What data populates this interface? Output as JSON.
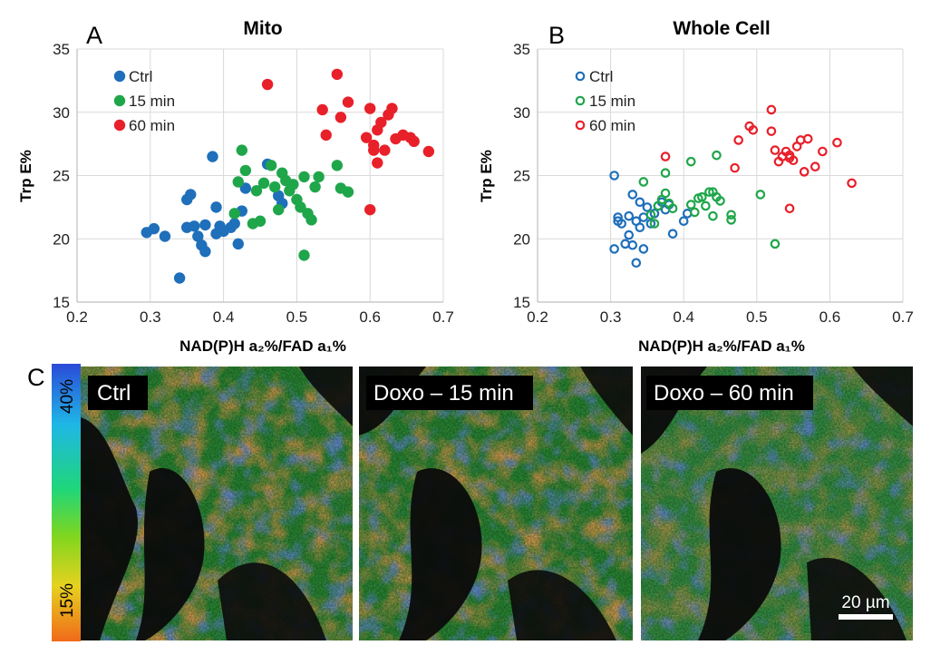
{
  "chart_data": [
    {
      "panel_label": "A",
      "type": "scatter",
      "title": "Mito",
      "xlabel": "NAD(P)H a₂%/FAD a₁%",
      "ylabel": "Trp E%",
      "xlim": [
        0.2,
        0.7
      ],
      "ylim": [
        15,
        35
      ],
      "xticks": [
        "0.2",
        "0.3",
        "0.4",
        "0.5",
        "0.6",
        "0.7"
      ],
      "yticks": [
        "15",
        "20",
        "25",
        "30",
        "35"
      ],
      "grid": true,
      "marker": "filled",
      "legend_position": "top-left",
      "series": [
        {
          "name": "Ctrl",
          "color": "#1f6fba",
          "points": [
            [
              0.295,
              20.5
            ],
            [
              0.305,
              20.8
            ],
            [
              0.32,
              20.2
            ],
            [
              0.34,
              16.9
            ],
            [
              0.35,
              20.9
            ],
            [
              0.35,
              23.1
            ],
            [
              0.355,
              23.5
            ],
            [
              0.36,
              21.0
            ],
            [
              0.365,
              20.2
            ],
            [
              0.37,
              19.5
            ],
            [
              0.375,
              19.0
            ],
            [
              0.375,
              21.1
            ],
            [
              0.385,
              26.5
            ],
            [
              0.39,
              20.4
            ],
            [
              0.39,
              22.5
            ],
            [
              0.395,
              21.0
            ],
            [
              0.4,
              20.6
            ],
            [
              0.41,
              20.9
            ],
            [
              0.415,
              21.2
            ],
            [
              0.42,
              19.6
            ],
            [
              0.425,
              22.2
            ],
            [
              0.43,
              24.0
            ],
            [
              0.46,
              25.9
            ],
            [
              0.475,
              23.4
            ],
            [
              0.48,
              22.8
            ]
          ]
        },
        {
          "name": "15 min",
          "color": "#1fa64a",
          "points": [
            [
              0.415,
              22.0
            ],
            [
              0.42,
              24.5
            ],
            [
              0.425,
              27.0
            ],
            [
              0.43,
              25.4
            ],
            [
              0.44,
              21.2
            ],
            [
              0.445,
              23.8
            ],
            [
              0.45,
              21.4
            ],
            [
              0.455,
              24.4
            ],
            [
              0.465,
              25.8
            ],
            [
              0.47,
              24.1
            ],
            [
              0.475,
              22.3
            ],
            [
              0.48,
              25.2
            ],
            [
              0.485,
              24.6
            ],
            [
              0.49,
              23.8
            ],
            [
              0.495,
              24.3
            ],
            [
              0.5,
              23.1
            ],
            [
              0.505,
              22.5
            ],
            [
              0.51,
              24.9
            ],
            [
              0.51,
              18.7
            ],
            [
              0.515,
              22.0
            ],
            [
              0.52,
              21.5
            ],
            [
              0.525,
              24.1
            ],
            [
              0.53,
              24.9
            ],
            [
              0.555,
              25.8
            ],
            [
              0.56,
              24.0
            ],
            [
              0.57,
              23.7
            ]
          ]
        },
        {
          "name": "60 min",
          "color": "#e8202a",
          "points": [
            [
              0.46,
              32.2
            ],
            [
              0.535,
              30.2
            ],
            [
              0.54,
              28.2
            ],
            [
              0.555,
              33.0
            ],
            [
              0.56,
              29.6
            ],
            [
              0.57,
              30.8
            ],
            [
              0.595,
              28.0
            ],
            [
              0.6,
              22.3
            ],
            [
              0.6,
              30.3
            ],
            [
              0.605,
              27.0
            ],
            [
              0.605,
              27.4
            ],
            [
              0.61,
              26.0
            ],
            [
              0.61,
              28.6
            ],
            [
              0.615,
              29.2
            ],
            [
              0.62,
              27.0
            ],
            [
              0.625,
              29.8
            ],
            [
              0.63,
              30.3
            ],
            [
              0.635,
              27.9
            ],
            [
              0.645,
              28.2
            ],
            [
              0.655,
              28.0
            ],
            [
              0.66,
              27.7
            ],
            [
              0.68,
              26.9
            ]
          ]
        }
      ]
    },
    {
      "panel_label": "B",
      "type": "scatter",
      "title": "Whole Cell",
      "xlabel": "NAD(P)H a₂%/FAD a₁%",
      "ylabel": "Trp E%",
      "xlim": [
        0.2,
        0.7
      ],
      "ylim": [
        15,
        35
      ],
      "xticks": [
        "0.2",
        "0.3",
        "0.4",
        "0.5",
        "0.6",
        "0.7"
      ],
      "yticks": [
        "15",
        "20",
        "25",
        "30",
        "35"
      ],
      "grid": true,
      "marker": "open",
      "legend_position": "top-left",
      "series": [
        {
          "name": "Ctrl",
          "color": "#1f6fba",
          "points": [
            [
              0.305,
              25.0
            ],
            [
              0.305,
              19.2
            ],
            [
              0.31,
              21.4
            ],
            [
              0.31,
              21.7
            ],
            [
              0.315,
              21.2
            ],
            [
              0.32,
              19.6
            ],
            [
              0.325,
              21.8
            ],
            [
              0.325,
              20.3
            ],
            [
              0.33,
              19.5
            ],
            [
              0.33,
              23.5
            ],
            [
              0.335,
              18.1
            ],
            [
              0.335,
              21.4
            ],
            [
              0.34,
              22.9
            ],
            [
              0.34,
              20.9
            ],
            [
              0.345,
              19.2
            ],
            [
              0.345,
              21.7
            ],
            [
              0.35,
              22.5
            ],
            [
              0.355,
              21.2
            ],
            [
              0.36,
              22.0
            ],
            [
              0.365,
              22.6
            ],
            [
              0.37,
              22.9
            ],
            [
              0.375,
              22.3
            ],
            [
              0.38,
              22.7
            ],
            [
              0.385,
              20.4
            ],
            [
              0.4,
              21.4
            ],
            [
              0.405,
              22.0
            ]
          ]
        },
        {
          "name": "15 min",
          "color": "#1fa64a",
          "points": [
            [
              0.345,
              24.5
            ],
            [
              0.355,
              21.9
            ],
            [
              0.36,
              21.2
            ],
            [
              0.365,
              22.6
            ],
            [
              0.37,
              23.1
            ],
            [
              0.375,
              25.2
            ],
            [
              0.375,
              23.6
            ],
            [
              0.38,
              22.8
            ],
            [
              0.385,
              22.4
            ],
            [
              0.41,
              26.1
            ],
            [
              0.41,
              22.7
            ],
            [
              0.415,
              22.1
            ],
            [
              0.42,
              23.2
            ],
            [
              0.425,
              23.3
            ],
            [
              0.43,
              22.6
            ],
            [
              0.435,
              23.7
            ],
            [
              0.44,
              23.7
            ],
            [
              0.44,
              21.8
            ],
            [
              0.445,
              23.3
            ],
            [
              0.45,
              23.0
            ],
            [
              0.445,
              26.6
            ],
            [
              0.465,
              21.5
            ],
            [
              0.465,
              21.9
            ],
            [
              0.505,
              23.5
            ],
            [
              0.525,
              19.6
            ]
          ]
        },
        {
          "name": "60 min",
          "color": "#e8202a",
          "points": [
            [
              0.375,
              26.5
            ],
            [
              0.47,
              25.6
            ],
            [
              0.475,
              27.8
            ],
            [
              0.49,
              28.9
            ],
            [
              0.495,
              28.6
            ],
            [
              0.52,
              28.5
            ],
            [
              0.52,
              30.2
            ],
            [
              0.525,
              27.0
            ],
            [
              0.53,
              26.1
            ],
            [
              0.535,
              26.5
            ],
            [
              0.54,
              26.9
            ],
            [
              0.545,
              26.6
            ],
            [
              0.545,
              22.4
            ],
            [
              0.545,
              26.4
            ],
            [
              0.55,
              26.2
            ],
            [
              0.555,
              27.3
            ],
            [
              0.56,
              27.8
            ],
            [
              0.565,
              25.3
            ],
            [
              0.57,
              27.9
            ],
            [
              0.58,
              25.7
            ],
            [
              0.59,
              26.9
            ],
            [
              0.61,
              27.6
            ],
            [
              0.63,
              24.4
            ]
          ]
        }
      ]
    }
  ],
  "panel_c": {
    "label": "C",
    "colorbar": {
      "top_label": "40%",
      "bottom_label": "15%"
    },
    "images": [
      {
        "label": "Ctrl"
      },
      {
        "label": "Doxo – 15 min"
      },
      {
        "label": "Doxo – 60 min"
      }
    ],
    "scale_bar_label": "20 µm"
  }
}
